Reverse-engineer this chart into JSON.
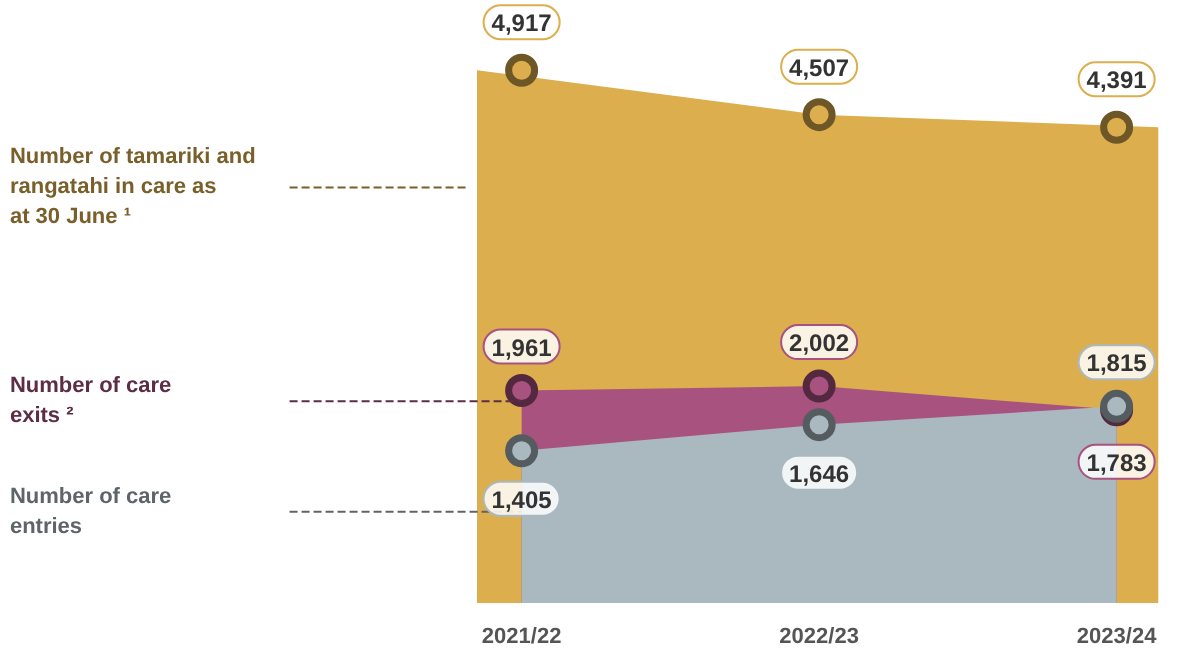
{
  "chart_data": {
    "type": "area",
    "categories": [
      "2021/22",
      "2022/23",
      "2023/24"
    ],
    "series": [
      {
        "name": "Number of tamariki and rangatahi in care as at 30 June ¹",
        "color": "#dcae4d",
        "values": [
          4917,
          4507,
          4391
        ],
        "value_labels": [
          "4,917",
          "4,507",
          "4,391"
        ]
      },
      {
        "name": "Number of care exits ²",
        "color": "#a8527f",
        "values": [
          1961,
          2002,
          1783
        ],
        "value_labels": [
          "1,961",
          "2,002",
          "1,783"
        ]
      },
      {
        "name": "Number of care entries",
        "color": "#aab9c0",
        "values": [
          1405,
          1646,
          1815
        ],
        "value_labels": [
          "1,405",
          "1,646",
          "1,815"
        ]
      }
    ],
    "legend": false,
    "grid": false
  }
}
